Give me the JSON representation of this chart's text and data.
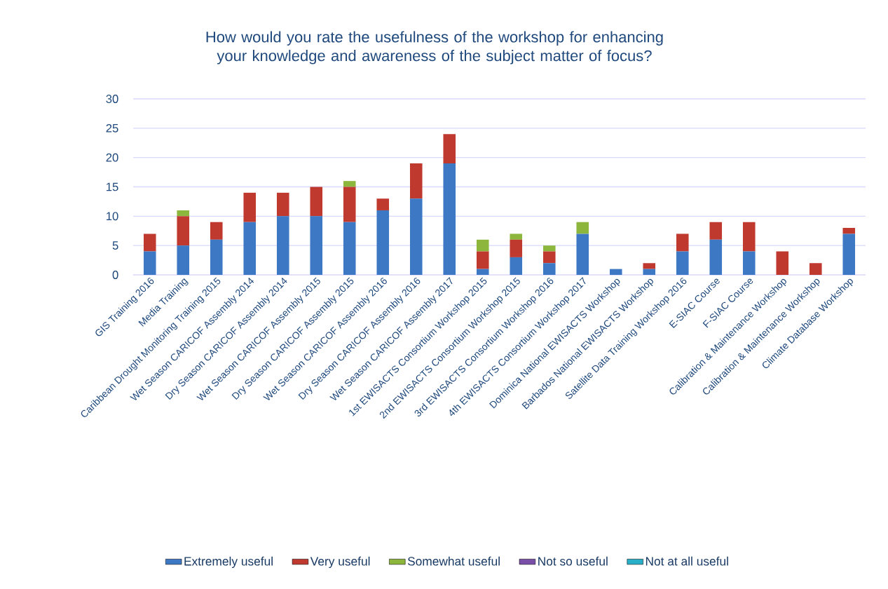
{
  "chart_data": {
    "type": "bar",
    "stacked": true,
    "title": "How would you rate the usefulness of the workshop for enhancing your knowledge and awareness of the subject matter of focus?",
    "categories": [
      "GIS Training 2016",
      "Media Training",
      "Caribbean Drought Monitoring Training 2015",
      "Wet Season CARICOF Assembly 2014",
      "Dry Season CARICOF Assembly 2014",
      "Wet Season CARICOF Assembly 2015",
      "Dry Season CARICOF Assembly 2015",
      "Wet Season CARICOF Assembly 2016",
      "Dry Season CARICOF Assembly 2016",
      "Wet Season CARICOF Assembly 2017",
      "1st EWISACTS Consortium Workshop 2015",
      "2nd EWISACTS Consortium Workshop 2015",
      "3rd EWISACTS Consortium Workshop 2016",
      "4th EWISACTS Consortium Workshop 2017",
      "Dominica National EWISACTS Workshop",
      "Barbados National EWISACTS Workshop",
      "Satellite Data Training Workshop 2016",
      "E-SIAC Course",
      "F-SIAC Course",
      "Calibration & Maintenance Workshop",
      "Calibration & Maintenance Workshop",
      "Climate Database Workshop"
    ],
    "series": [
      {
        "name": "Extremely useful",
        "color": "#3c78c4",
        "values": [
          4,
          5,
          6,
          9,
          10,
          10,
          9,
          11,
          13,
          19,
          1,
          3,
          2,
          7,
          1,
          1,
          4,
          6,
          4,
          0,
          0,
          7
        ]
      },
      {
        "name": "Very useful",
        "color": "#c0392f",
        "values": [
          3,
          5,
          3,
          5,
          4,
          5,
          6,
          2,
          6,
          5,
          3,
          3,
          2,
          0,
          0,
          1,
          3,
          3,
          5,
          4,
          2,
          1
        ]
      },
      {
        "name": "Somewhat useful",
        "color": "#8db63c",
        "values": [
          0,
          1,
          0,
          0,
          0,
          0,
          1,
          0,
          0,
          0,
          2,
          1,
          1,
          2,
          0,
          0,
          0,
          0,
          0,
          0,
          0,
          0
        ]
      },
      {
        "name": "Not so useful",
        "color": "#7a4fa8",
        "values": [
          0,
          0,
          0,
          0,
          0,
          0,
          0,
          0,
          0,
          0,
          0,
          0,
          0,
          0,
          0,
          0,
          0,
          0,
          0,
          0,
          0,
          0
        ]
      },
      {
        "name": "Not at all useful",
        "color": "#28b0c8",
        "values": [
          0,
          0,
          0,
          0,
          0,
          0,
          0,
          0,
          0,
          0,
          0,
          0,
          0,
          0,
          0,
          0,
          0,
          0,
          0,
          0,
          0,
          0
        ]
      }
    ],
    "ylim": [
      0,
      30
    ],
    "yticks": [
      0,
      5,
      10,
      15,
      20,
      25,
      30
    ],
    "grid": "y",
    "legend": "bottom"
  }
}
